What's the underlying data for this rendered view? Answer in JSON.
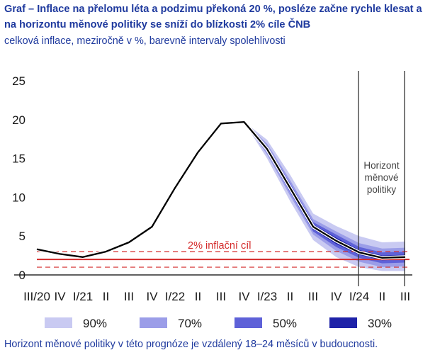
{
  "header": {
    "title": "Graf – Inflace na přelomu léta a podzimu překoná 20 %, posléze začne rychle klesat a na horizontu měnové politiky se sníží do blízkosti 2% cíle ČNB",
    "subtitle": "celková inflace, meziročně v %, barevně intervaly spolehlivosti"
  },
  "footnote": "Horizont měnové politiky v této prognóze je vzdálený 18–24 měsíců v budoucnosti.",
  "colors": {
    "line": "#000000",
    "target": "#d42a2a",
    "band90": "#c9caf2",
    "band70": "#9b9de8",
    "band50": "#5e61d8",
    "band30": "#1e22a8"
  },
  "chart_data": {
    "type": "line",
    "x_labels": [
      "III/20",
      "IV",
      "I/21",
      "II",
      "III",
      "IV",
      "I/22",
      "II",
      "III",
      "IV",
      "I/23",
      "II",
      "III",
      "IV",
      "I/24",
      "II",
      "III"
    ],
    "ylim": [
      0,
      25
    ],
    "yticks": [
      0,
      5,
      10,
      15,
      20,
      25
    ],
    "series": [
      {
        "values": [
          3.3,
          2.7,
          2.3,
          3.0,
          4.2,
          6.2,
          11.2,
          15.8,
          19.5,
          19.7,
          16.2,
          11.2,
          6.2,
          4.4,
          2.9,
          2.2,
          2.3
        ]
      }
    ],
    "forecast_start_index": 9,
    "confidence_bands": [
      {
        "name": "90%",
        "lower": [
          19.7,
          15.0,
          9.5,
          4.5,
          2.3,
          1.0,
          0.5,
          0.5
        ],
        "upper": [
          19.7,
          17.4,
          12.9,
          7.9,
          6.3,
          5.0,
          4.2,
          4.3
        ]
      },
      {
        "name": "70%",
        "lower": [
          19.7,
          15.5,
          10.2,
          5.2,
          3.1,
          1.7,
          1.0,
          1.1
        ],
        "upper": [
          19.7,
          16.9,
          12.2,
          7.2,
          5.6,
          4.1,
          3.4,
          3.5
        ]
      },
      {
        "name": "50%",
        "lower": [
          19.7,
          15.8,
          10.6,
          5.6,
          3.6,
          2.2,
          1.5,
          1.6
        ],
        "upper": [
          19.7,
          16.6,
          11.8,
          6.8,
          5.2,
          3.6,
          2.9,
          3.0
        ]
      },
      {
        "name": "30%",
        "lower": [
          19.7,
          16.0,
          10.9,
          5.9,
          4.0,
          2.6,
          1.9,
          2.0
        ],
        "upper": [
          19.7,
          16.4,
          11.5,
          6.5,
          4.8,
          3.2,
          2.5,
          2.6
        ]
      }
    ],
    "inflation_target": {
      "label": "2% inflační cíl",
      "value": 2,
      "tolerance": [
        1,
        3
      ]
    },
    "horizon": {
      "label_lines": [
        "Horizont",
        "měnové",
        "politiky"
      ],
      "start_index": 14.0,
      "end_index": 16.0
    },
    "legend": [
      "90%",
      "70%",
      "50%",
      "30%"
    ],
    "legend_position": "bottom",
    "grid": false
  }
}
